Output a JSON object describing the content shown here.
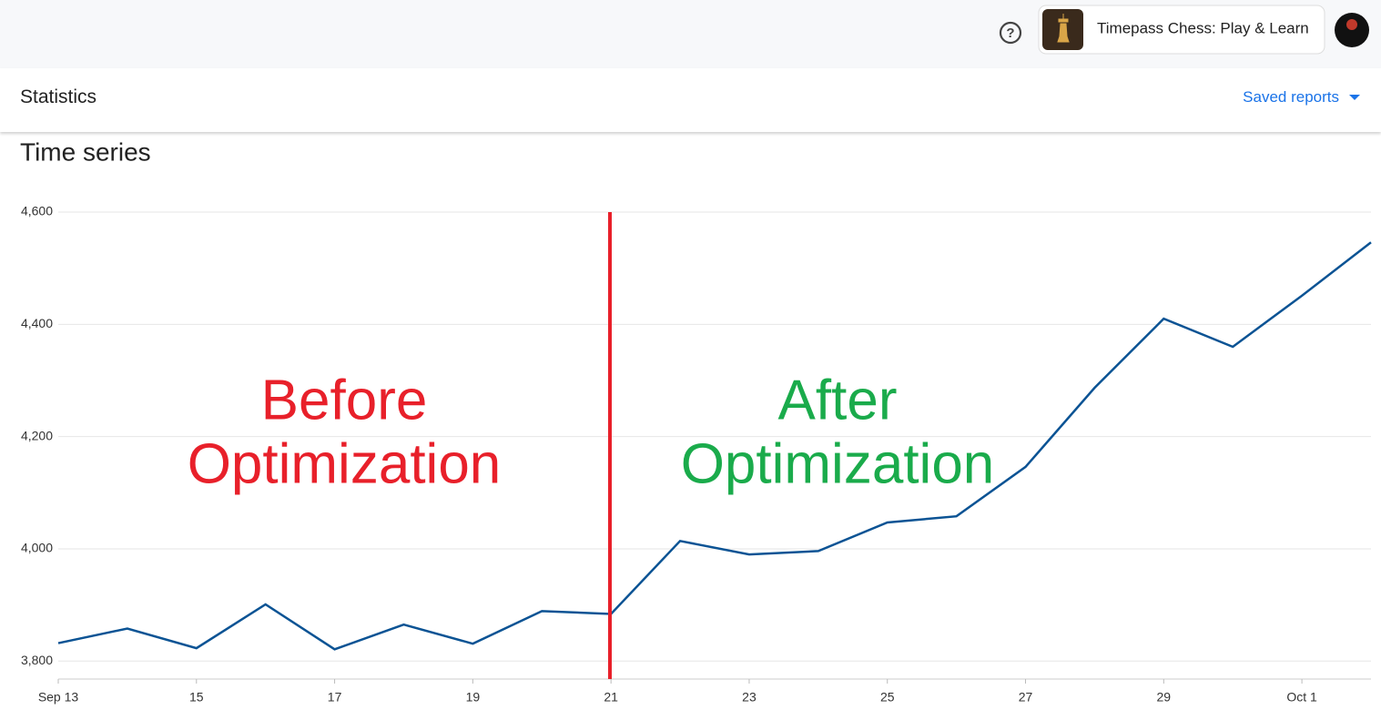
{
  "header": {
    "app_name": "Timepass Chess: Play & Learn",
    "section": "Statistics",
    "saved_reports": "Saved reports"
  },
  "chart_data": {
    "type": "line",
    "title": "Time series",
    "categories": [
      "Sep 13",
      null,
      "15",
      null,
      "17",
      null,
      "19",
      null,
      "21",
      null,
      "23",
      null,
      "25",
      null,
      "27",
      null,
      "29",
      null,
      "Oct 1",
      null
    ],
    "values": [
      3832,
      3858,
      3823,
      3901,
      3821,
      3865,
      3831,
      3889,
      3884,
      4014,
      3990,
      3996,
      4047,
      4058,
      4146,
      4287,
      4410,
      4360,
      4451,
      4546
    ],
    "color": "#0b5394",
    "ylim": [
      3768,
      4600
    ],
    "yticks": [
      {
        "value": 3800,
        "label": "3,800"
      },
      {
        "value": 4000,
        "label": "4,000"
      },
      {
        "value": 4200,
        "label": "4,200"
      },
      {
        "value": 4400,
        "label": "4,400"
      },
      {
        "value": 4600,
        "label": "4,600"
      }
    ],
    "grid": true,
    "annotations": [
      {
        "lines": [
          "Before",
          "Optimization"
        ],
        "color": "#e8202a"
      },
      {
        "lines": [
          "After",
          "Optimization"
        ],
        "color": "#1aab4b"
      }
    ]
  }
}
